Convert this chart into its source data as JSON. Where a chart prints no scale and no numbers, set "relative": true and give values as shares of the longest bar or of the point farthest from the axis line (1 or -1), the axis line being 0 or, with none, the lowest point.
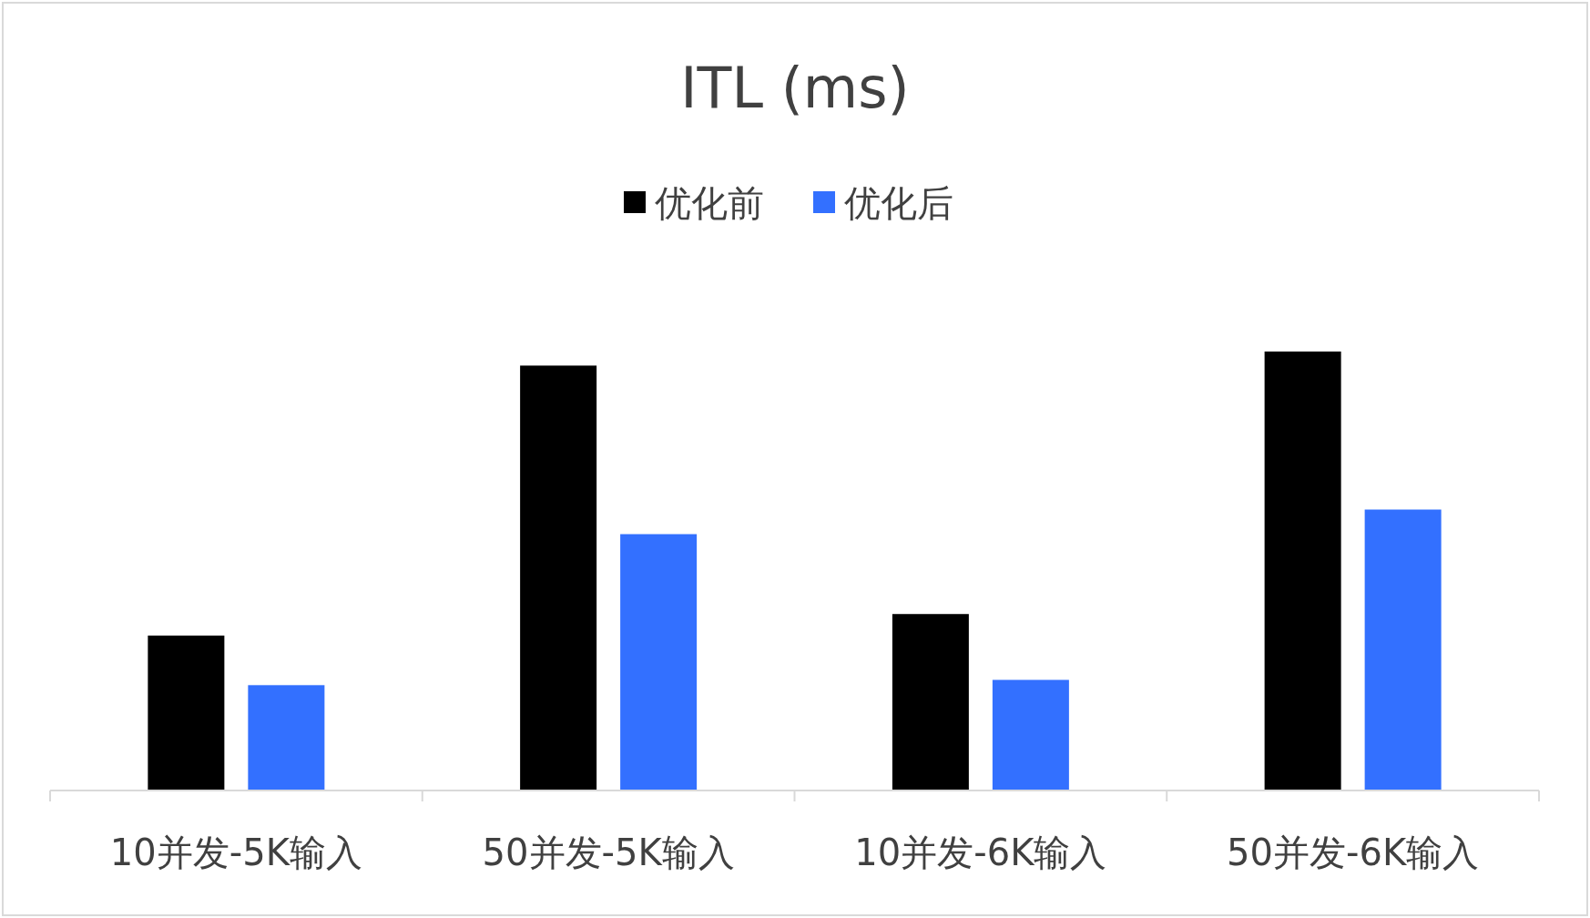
{
  "chart_data": {
    "type": "bar",
    "title": "ITL (ms)",
    "relative": true,
    "legend": "top",
    "categories": [
      "10并发-5K输入",
      "50并发-5K输入",
      "10并发-6K输入",
      "50并发-6K输入"
    ],
    "series": [
      {
        "name": "优化前",
        "color": "#000000",
        "values": [
          0.353,
          0.968,
          0.402,
          1
        ]
      },
      {
        "name": "优化后",
        "color": "#3370ff",
        "values": [
          0.24,
          0.584,
          0.252,
          0.64
        ]
      }
    ]
  }
}
